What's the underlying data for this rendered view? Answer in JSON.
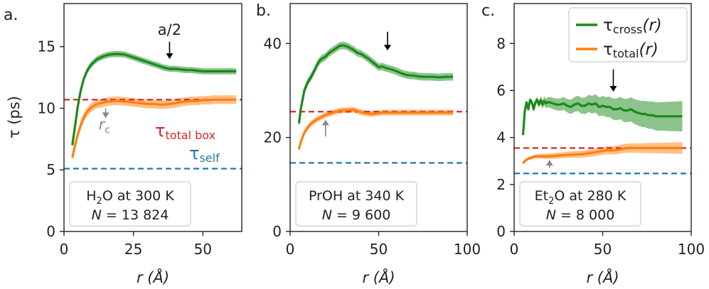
{
  "chart_data": [
    {
      "type": "line",
      "panel_label": "a.",
      "xlabel": "r (Å)",
      "ylabel": "τ (ps)",
      "xlim": [
        0,
        64
      ],
      "ylim": [
        0,
        18.5
      ],
      "xticks": [
        0,
        25,
        50
      ],
      "yticks": [
        0,
        5,
        10,
        15
      ],
      "tick_labels_x": [
        "0",
        "25",
        "50"
      ],
      "tick_labels_y": [
        "0",
        "5",
        "10",
        "15"
      ],
      "series": [
        {
          "name": "τcross(r)",
          "color": "#1a8a1a",
          "x": [
            3,
            4,
            5,
            6,
            7,
            8,
            9,
            10,
            11,
            12,
            14,
            16,
            18,
            20,
            22,
            24,
            26,
            28,
            30,
            32,
            34,
            36,
            38,
            40,
            42,
            44,
            46,
            48,
            50,
            52,
            54,
            56,
            58,
            60,
            62
          ],
          "y": [
            7.0,
            8.6,
            10.2,
            11.4,
            12.3,
            12.9,
            13.3,
            13.6,
            13.8,
            14.0,
            14.2,
            14.35,
            14.4,
            14.4,
            14.35,
            14.2,
            14.05,
            13.9,
            13.75,
            13.6,
            13.45,
            13.3,
            13.2,
            13.2,
            13.15,
            13.1,
            13.1,
            13.05,
            13.0,
            13.0,
            13.0,
            13.0,
            13.0,
            13.0,
            13.0
          ],
          "band": 0.25
        },
        {
          "name": "τtotal(r)",
          "color": "#ff7f0e",
          "x": [
            3,
            4,
            5,
            6,
            7,
            8,
            9,
            10,
            11,
            12,
            14,
            16,
            18,
            20,
            22,
            24,
            26,
            28,
            30,
            32,
            34,
            36,
            38,
            40,
            42,
            44,
            46,
            48,
            50,
            52,
            54,
            56,
            58,
            60,
            62
          ],
          "y": [
            6.0,
            7.0,
            7.9,
            8.6,
            9.2,
            9.6,
            9.9,
            10.1,
            10.25,
            10.35,
            10.45,
            10.55,
            10.6,
            10.6,
            10.55,
            10.5,
            10.45,
            10.4,
            10.35,
            10.35,
            10.3,
            10.3,
            10.35,
            10.4,
            10.5,
            10.55,
            10.6,
            10.6,
            10.65,
            10.65,
            10.7,
            10.7,
            10.7,
            10.7,
            10.7
          ],
          "band": 0.35
        }
      ],
      "hlines": [
        {
          "name": "τtotal box",
          "y": 10.7,
          "color": "#d62728"
        },
        {
          "name": "τself",
          "y": 5.1,
          "color": "#1f77b4"
        }
      ],
      "annotations": [
        {
          "text": "a/2",
          "x": 38,
          "y": 15.4,
          "arrow_to": 14.0,
          "color": "#000000"
        },
        {
          "text": "r",
          "sub": "c",
          "x": 15,
          "y": 10.0,
          "arrow_to": 9.2,
          "color": "#888888"
        }
      ],
      "label_total_box": {
        "main": "τ",
        "sub": "total box"
      },
      "label_self": {
        "main": "τ",
        "sub": "self"
      },
      "infobox": {
        "line1_main": "H",
        "line1_sub": "2",
        "line1_rest": "O at 300 K",
        "line2_n": "N",
        "line2_rest": " = 13 824"
      }
    },
    {
      "type": "line",
      "panel_label": "b.",
      "xlabel": "r (Å)",
      "xlim": [
        0,
        100
      ],
      "ylim": [
        0,
        48.5
      ],
      "xticks": [
        0,
        50,
        100
      ],
      "yticks": [
        0,
        20,
        40
      ],
      "tick_labels_x": [
        "0",
        "50",
        "100"
      ],
      "tick_labels_y": [
        "0",
        "20",
        "40"
      ],
      "series": [
        {
          "name": "τcross(r)",
          "color": "#1a8a1a",
          "x": [
            5,
            6,
            7,
            8,
            10,
            12,
            14,
            16,
            18,
            20,
            22,
            24,
            26,
            28,
            30,
            32,
            34,
            36,
            38,
            40,
            42,
            44,
            46,
            48,
            50,
            52,
            54,
            56,
            58,
            60,
            62,
            64,
            66,
            68,
            70,
            72,
            76,
            80,
            84,
            88,
            92
          ],
          "y": [
            23.0,
            26.0,
            28.0,
            30.0,
            31.8,
            33.0,
            34.5,
            36.0,
            36.8,
            37.2,
            38.0,
            38.5,
            39.0,
            39.5,
            39.6,
            39.4,
            39.0,
            38.6,
            38.0,
            37.8,
            37.3,
            36.8,
            36.2,
            35.6,
            35.0,
            35.1,
            34.8,
            34.6,
            34.4,
            34.1,
            33.8,
            33.5,
            33.3,
            33.2,
            33.2,
            33.0,
            32.9,
            32.9,
            32.8,
            32.9,
            32.9
          ],
          "band": 0.8
        },
        {
          "name": "τtotal(r)",
          "color": "#ff7f0e",
          "x": [
            5,
            6,
            7,
            8,
            10,
            12,
            14,
            16,
            18,
            20,
            22,
            24,
            26,
            28,
            30,
            32,
            34,
            36,
            38,
            40,
            42,
            44,
            46,
            48,
            50,
            52,
            54,
            56,
            58,
            60,
            64,
            68,
            72,
            76,
            80,
            84,
            88,
            92
          ],
          "y": [
            17.5,
            19.0,
            20.0,
            21.0,
            22.2,
            23.0,
            23.6,
            24.0,
            24.4,
            24.8,
            25.0,
            25.3,
            25.5,
            25.7,
            25.8,
            25.8,
            25.9,
            25.9,
            25.6,
            25.4,
            25.2,
            25.1,
            25.0,
            25.1,
            25.2,
            25.3,
            25.3,
            25.3,
            25.3,
            25.3,
            25.3,
            25.3,
            25.3,
            25.3,
            25.3,
            25.3,
            25.3,
            25.3
          ],
          "band": 0.6
        }
      ],
      "hlines": [
        {
          "name": "τtotal box",
          "y": 25.5,
          "color": "#d62728"
        },
        {
          "name": "τself",
          "y": 14.6,
          "color": "#1f77b4"
        }
      ],
      "annotations": [
        {
          "text": "",
          "x": 55,
          "y": 42.5,
          "arrow_to": 38.5,
          "color": "#000000"
        },
        {
          "text": "",
          "x": 20,
          "y": 20.2,
          "arrow_to": 23.8,
          "color": "#888888"
        }
      ],
      "infobox": {
        "line1_main": "PrOH at 340 K",
        "line2_n": "N",
        "line2_rest": " = 9 600"
      }
    },
    {
      "type": "line",
      "panel_label": "c.",
      "xlabel": "r (Å)",
      "xlim": [
        0,
        100
      ],
      "ylim": [
        0,
        9.7
      ],
      "xticks": [
        0,
        50,
        100
      ],
      "yticks": [
        0,
        2,
        4,
        6,
        8
      ],
      "tick_labels_x": [
        "0",
        "50",
        "100"
      ],
      "tick_labels_y": [
        "0",
        "2",
        "4",
        "6",
        "8"
      ],
      "legend": {
        "position": "top-right",
        "items": [
          {
            "main": "τ",
            "sub": "cross",
            "tail": "(r)",
            "color": "#1a8a1a"
          },
          {
            "main": "τ",
            "sub": "total",
            "tail": "(r)",
            "color": "#ff7f0e"
          }
        ]
      },
      "series": [
        {
          "name": "τcross(r)",
          "color": "#1a8a1a",
          "x": [
            5,
            6,
            7,
            8,
            9,
            10,
            11,
            12,
            13,
            14,
            15,
            16,
            17,
            18,
            19,
            20,
            22,
            24,
            26,
            28,
            30,
            32,
            34,
            36,
            38,
            40,
            42,
            44,
            46,
            48,
            50,
            52,
            54,
            56,
            58,
            60,
            62,
            64,
            66,
            68,
            70,
            72,
            74,
            76,
            78,
            80,
            84,
            88,
            92,
            95
          ],
          "y": [
            4.1,
            5.1,
            5.5,
            5.2,
            5.6,
            5.5,
            5.2,
            5.5,
            5.6,
            5.4,
            5.6,
            5.4,
            5.55,
            5.45,
            5.5,
            5.5,
            5.45,
            5.4,
            5.4,
            5.45,
            5.35,
            5.3,
            5.4,
            5.45,
            5.35,
            5.35,
            5.45,
            5.4,
            5.45,
            5.3,
            5.35,
            5.3,
            5.3,
            5.2,
            5.2,
            5.25,
            5.15,
            5.15,
            5.2,
            5.1,
            5.05,
            5.0,
            5.0,
            4.95,
            4.95,
            4.9,
            4.9,
            4.9,
            4.9,
            4.9
          ],
          "band_from": 0.04,
          "band_to": 0.65
        },
        {
          "name": "τtotal(r)",
          "color": "#ff7f0e",
          "x": [
            5,
            6,
            7,
            8,
            10,
            12,
            14,
            16,
            18,
            20,
            24,
            28,
            32,
            36,
            40,
            44,
            48,
            52,
            56,
            60,
            64,
            68,
            72,
            76,
            80,
            84,
            88,
            92,
            95
          ],
          "y": [
            2.9,
            3.0,
            3.05,
            3.1,
            3.15,
            3.2,
            3.2,
            3.2,
            3.2,
            3.2,
            3.22,
            3.25,
            3.27,
            3.28,
            3.3,
            3.35,
            3.4,
            3.45,
            3.45,
            3.5,
            3.55,
            3.55,
            3.55,
            3.55,
            3.55,
            3.55,
            3.55,
            3.55,
            3.55
          ],
          "band_from": 0.05,
          "band_to": 0.25
        }
      ],
      "hlines": [
        {
          "name": "τtotal box",
          "y": 3.55,
          "color": "#d62728"
        },
        {
          "name": "τself",
          "y": 2.47,
          "color": "#1f77b4"
        }
      ],
      "annotations": [
        {
          "text": "",
          "x": 56,
          "y": 6.9,
          "arrow_to": 5.95,
          "color": "#000000"
        },
        {
          "text": "",
          "x": 20,
          "y": 2.7,
          "arrow_to": 3.05,
          "color": "#888888"
        }
      ],
      "infobox": {
        "line1_main": "Et",
        "line1_sub": "2",
        "line1_rest": "O at 280 K",
        "line2_n": "N",
        "line2_rest": " = 8 000"
      }
    }
  ]
}
